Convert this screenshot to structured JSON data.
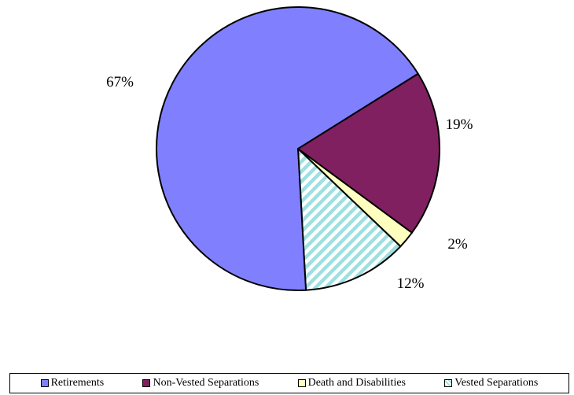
{
  "chart_data": {
    "type": "pie",
    "categories": [
      "Retirements",
      "Non-Vested Separations",
      "Death and Disabilities",
      "Vested Separations"
    ],
    "values": [
      67,
      19,
      2,
      12
    ],
    "data_labels": [
      "67%",
      "19%",
      "2%",
      "12%"
    ],
    "colors": [
      "#8080ff",
      "#802060",
      "#ffffc0",
      "#9fdfe0"
    ],
    "patterns": [
      "solid",
      "solid",
      "solid",
      "diagonal-hatch"
    ],
    "title": "",
    "legend_position": "bottom"
  },
  "legend": {
    "items": [
      {
        "label": "Retirements",
        "color": "#8080ff",
        "pattern": "solid"
      },
      {
        "label": "Non-Vested Separations",
        "color": "#802060",
        "pattern": "solid"
      },
      {
        "label": "Death and Disabilities",
        "color": "#ffffc0",
        "pattern": "solid"
      },
      {
        "label": "Vested Separations",
        "color": "#9fdfe0",
        "pattern": "diagonal-hatch"
      }
    ]
  }
}
